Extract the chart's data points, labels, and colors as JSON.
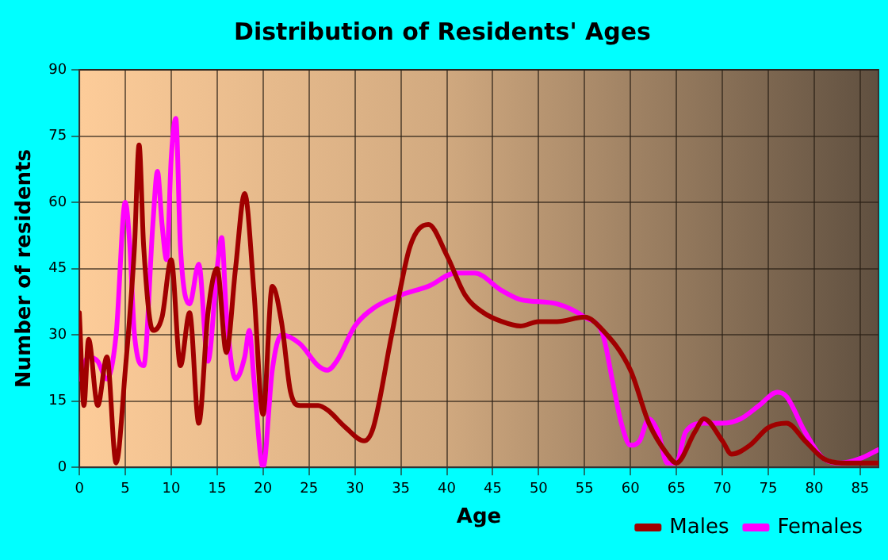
{
  "chart_data": {
    "type": "line",
    "title": "Distribution of Residents' Ages",
    "xlabel": "Age",
    "ylabel": "Number of residents",
    "xlim": [
      0,
      87
    ],
    "xticks": [
      0,
      5,
      10,
      15,
      20,
      25,
      30,
      35,
      40,
      45,
      50,
      55,
      60,
      65,
      70,
      75,
      80,
      85
    ],
    "ylim": [
      0,
      90
    ],
    "yticks": [
      0,
      15,
      30,
      45,
      60,
      75,
      90
    ],
    "grid": true,
    "legend": "bottom right",
    "marker": "none",
    "line_style": "solid",
    "series": [
      {
        "name": "Males",
        "color": "#a00000",
        "x": [
          0,
          0.5,
          1,
          2,
          3,
          4,
          5,
          6,
          6.5,
          7,
          8,
          9,
          10,
          11,
          12,
          13,
          14,
          15,
          16,
          17,
          18,
          19,
          20,
          21,
          22,
          23,
          24,
          26,
          27,
          29,
          31,
          32,
          34,
          36,
          38,
          40,
          42,
          44,
          46,
          48,
          50,
          52,
          55,
          57,
          60,
          62,
          64,
          65,
          67,
          68,
          70,
          71,
          73,
          75,
          77,
          79,
          81,
          83,
          87
        ],
        "values": [
          35,
          14,
          29,
          14,
          25,
          1,
          22,
          50,
          73,
          50,
          31,
          34,
          47,
          23,
          35,
          10,
          35,
          45,
          26,
          45,
          62,
          40,
          12,
          41,
          33,
          17,
          14,
          14,
          13,
          9,
          6,
          9,
          30,
          50,
          55,
          48,
          39,
          35,
          33,
          32,
          33,
          33,
          34,
          31,
          22,
          10,
          3,
          1,
          8,
          11,
          6,
          3,
          5,
          9,
          10,
          6,
          2,
          1,
          1
        ]
      },
      {
        "name": "Females",
        "color": "#ff00ff",
        "x": [
          0,
          1,
          2,
          3,
          4,
          5,
          5.5,
          6,
          7,
          8,
          8.5,
          9,
          9.5,
          10,
          10.5,
          11,
          12,
          13,
          14,
          15,
          15.5,
          16,
          17,
          18,
          18.5,
          19,
          20,
          21,
          22,
          24,
          26,
          27,
          28,
          30,
          32,
          35,
          38,
          41,
          43,
          46,
          48,
          52,
          55,
          57,
          58,
          59,
          60,
          61,
          62,
          63,
          64,
          65,
          66,
          68,
          70,
          72,
          74,
          76,
          77,
          79,
          81,
          83,
          85,
          87
        ],
        "values": [
          20,
          25,
          24,
          20,
          30,
          60,
          50,
          30,
          23,
          55,
          67,
          55,
          47,
          70,
          79,
          50,
          37,
          46,
          24,
          45,
          52,
          35,
          20,
          25,
          31,
          20,
          0,
          22,
          30,
          28,
          23,
          22,
          24,
          32,
          36,
          39,
          41,
          44,
          44,
          40,
          38,
          37,
          34,
          30,
          20,
          10,
          5,
          6,
          11,
          8,
          1,
          1,
          8,
          10,
          10,
          11,
          14,
          17,
          16,
          8,
          2,
          1,
          2,
          4
        ]
      }
    ]
  }
}
